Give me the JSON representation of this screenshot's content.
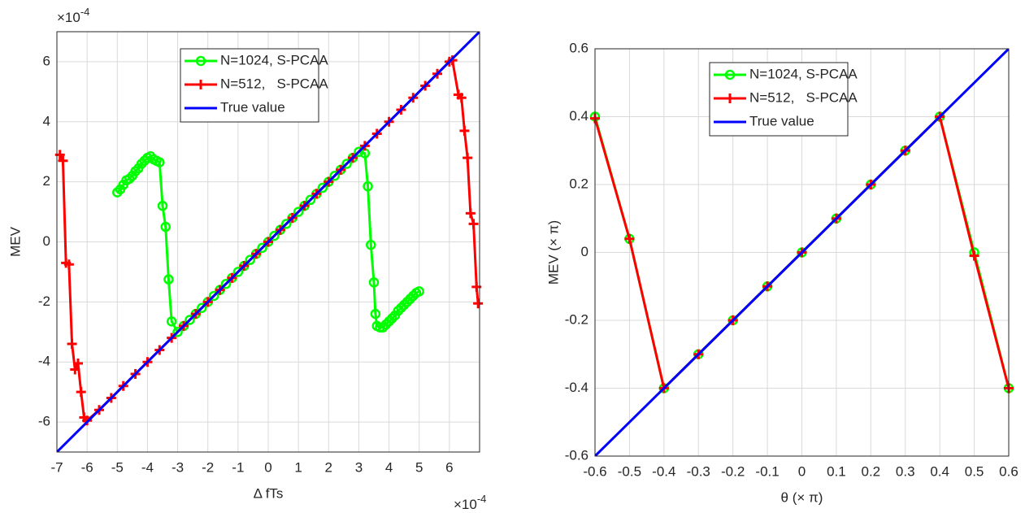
{
  "chart_data": [
    {
      "type": "line",
      "xlabel": "Δ fTs",
      "ylabel": "MEV",
      "x_multiplier": {
        "base": "×10",
        "exponent": "-4"
      },
      "y_multiplier": {
        "base": "×10",
        "exponent": "-4"
      },
      "xlim": [
        -7,
        7
      ],
      "ylim": [
        -7,
        7
      ],
      "xticks": [
        -7,
        -6,
        -5,
        -4,
        -3,
        -2,
        -1,
        0,
        1,
        2,
        3,
        4,
        5,
        6
      ],
      "yticks": [
        -6,
        -4,
        -2,
        0,
        2,
        4,
        6
      ],
      "grid": true,
      "legend": "top",
      "series": [
        {
          "name": "N=1024, S-PCAA",
          "color": "#00ff00",
          "marker": "circle",
          "x": [
            -5,
            -4.9,
            -4.8,
            -4.7,
            -4.6,
            -4.5,
            -4.4,
            -4.3,
            -4.2,
            -4.1,
            -4,
            -3.9,
            -3.8,
            -3.7,
            -3.6,
            -3.5,
            -3.4,
            -3.3,
            -3.2,
            -3,
            -2.8,
            -2.6,
            -2.4,
            -2.2,
            -2,
            -1.8,
            -1.6,
            -1.4,
            -1.2,
            -1,
            -0.8,
            -0.6,
            -0.4,
            -0.2,
            0,
            0.2,
            0.4,
            0.6,
            0.8,
            1,
            1.2,
            1.4,
            1.6,
            1.8,
            2,
            2.2,
            2.4,
            2.6,
            2.8,
            3,
            3.2,
            3.3,
            3.4,
            3.5,
            3.55,
            3.6,
            3.7,
            3.8,
            3.9,
            4,
            4.1,
            4.2,
            4.3,
            4.4,
            4.5,
            4.6,
            4.7,
            4.8,
            4.9,
            5
          ],
          "values": [
            1.65,
            1.75,
            1.9,
            2.05,
            2.1,
            2.2,
            2.35,
            2.45,
            2.6,
            2.7,
            2.8,
            2.85,
            2.75,
            2.7,
            2.65,
            1.2,
            0.5,
            -1.25,
            -2.65,
            -3,
            -2.8,
            -2.6,
            -2.4,
            -2.2,
            -2,
            -1.8,
            -1.6,
            -1.4,
            -1.2,
            -1,
            -0.8,
            -0.6,
            -0.4,
            -0.2,
            0,
            0.2,
            0.4,
            0.6,
            0.8,
            1,
            1.2,
            1.4,
            1.6,
            1.8,
            2,
            2.2,
            2.4,
            2.6,
            2.8,
            3,
            2.95,
            1.85,
            -0.1,
            -1.35,
            -2.4,
            -2.8,
            -2.85,
            -2.85,
            -2.75,
            -2.65,
            -2.55,
            -2.45,
            -2.3,
            -2.2,
            -2.1,
            -2,
            -1.9,
            -1.8,
            -1.7,
            -1.65
          ]
        },
        {
          "name": "N=512,   S-PCAA",
          "color": "#ff0000",
          "marker": "plus",
          "x": [
            -6.9,
            -6.8,
            -6.7,
            -6.6,
            -6.5,
            -6.4,
            -6.3,
            -6.2,
            -6.1,
            -6,
            -5.6,
            -5.2,
            -4.8,
            -4.4,
            -4,
            -3.6,
            -3.2,
            -2.8,
            -2.4,
            -2,
            -1.6,
            -1.2,
            -0.8,
            -0.4,
            0,
            0.4,
            0.8,
            1.2,
            1.6,
            2,
            2.4,
            2.8,
            3.2,
            3.6,
            4,
            4.4,
            4.8,
            5.2,
            5.6,
            6,
            6.1,
            6.3,
            6.4,
            6.5,
            6.6,
            6.7,
            6.8,
            6.9,
            6.95
          ],
          "values": [
            2.9,
            2.7,
            -0.7,
            -0.75,
            -3.4,
            -4.25,
            -4.05,
            -5,
            -5.85,
            -5.95,
            -5.6,
            -5.2,
            -4.8,
            -4.4,
            -4,
            -3.6,
            -3.2,
            -2.8,
            -2.4,
            -2,
            -1.6,
            -1.2,
            -0.8,
            -0.4,
            0,
            0.4,
            0.8,
            1.2,
            1.6,
            2,
            2.4,
            2.8,
            3.2,
            3.6,
            4,
            4.4,
            4.8,
            5.2,
            5.6,
            6,
            6.05,
            4.9,
            4.8,
            3.7,
            2.8,
            0.95,
            0.6,
            -1.5,
            -2.05
          ]
        },
        {
          "name": "True value",
          "color": "#0000ff",
          "marker": "none",
          "x": [
            -7,
            7
          ],
          "values": [
            -7,
            7
          ]
        }
      ]
    },
    {
      "type": "line",
      "xlabel": "θ (× π)",
      "ylabel": "MEV (× π)",
      "xlim": [
        -0.6,
        0.6
      ],
      "ylim": [
        -0.6,
        0.6
      ],
      "xticks": [
        -0.6,
        -0.5,
        -0.4,
        -0.3,
        -0.2,
        -0.1,
        0,
        0.1,
        0.2,
        0.3,
        0.4,
        0.5,
        0.6
      ],
      "yticks": [
        -0.6,
        -0.4,
        -0.2,
        0,
        0.2,
        0.4,
        0.6
      ],
      "grid": true,
      "legend": "top",
      "series": [
        {
          "name": "N=1024, S-PCAA",
          "color": "#00ff00",
          "marker": "circle",
          "x": [
            -0.6,
            -0.5,
            -0.4,
            -0.3,
            -0.2,
            -0.1,
            0,
            0.1,
            0.2,
            0.3,
            0.4,
            0.5,
            0.6
          ],
          "values": [
            0.4,
            0.04,
            -0.4,
            -0.3,
            -0.2,
            -0.1,
            0,
            0.1,
            0.2,
            0.3,
            0.4,
            0,
            -0.4
          ]
        },
        {
          "name": "N=512,   S-PCAA",
          "color": "#ff0000",
          "marker": "plus",
          "x": [
            -0.6,
            -0.5,
            -0.4,
            -0.3,
            -0.2,
            -0.1,
            0,
            0.1,
            0.2,
            0.3,
            0.4,
            0.5,
            0.6
          ],
          "values": [
            0.395,
            0.04,
            -0.4,
            -0.3,
            -0.2,
            -0.1,
            0,
            0.1,
            0.2,
            0.3,
            0.4,
            -0.01,
            -0.4
          ]
        },
        {
          "name": "True value",
          "color": "#0000ff",
          "marker": "none",
          "x": [
            -0.6,
            0.6
          ],
          "values": [
            -0.6,
            0.6
          ]
        }
      ]
    }
  ]
}
